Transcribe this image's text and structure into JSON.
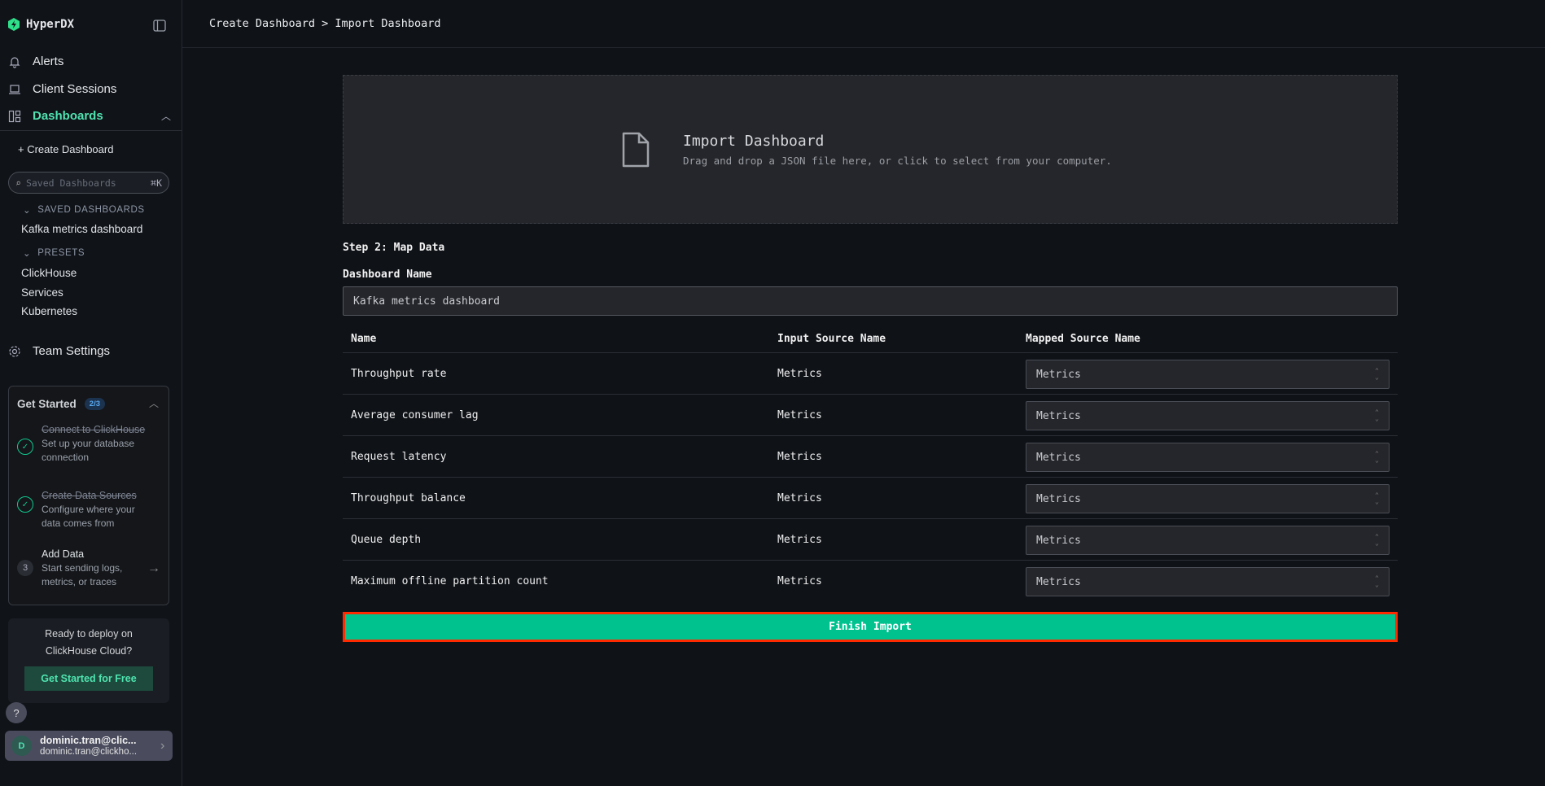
{
  "app": {
    "name": "HyperDX",
    "brand_color": "#2fe08a"
  },
  "sidebar": {
    "nav": [
      {
        "label": "Alerts",
        "icon": "bell-icon"
      },
      {
        "label": "Client Sessions",
        "icon": "laptop-icon"
      },
      {
        "label": "Dashboards",
        "icon": "dashboard-icon",
        "active": true
      }
    ],
    "create_dashboard": "Create Dashboard",
    "search": {
      "placeholder": "Saved Dashboards",
      "shortcut": "⌘K"
    },
    "saved_header": "SAVED DASHBOARDS",
    "saved": [
      "Kafka metrics dashboard"
    ],
    "presets_header": "PRESETS",
    "presets": [
      "ClickHouse",
      "Services",
      "Kubernetes"
    ],
    "team_settings": "Team Settings",
    "get_started": {
      "title": "Get Started",
      "progress": "2/3",
      "steps": [
        {
          "title": "Connect to ClickHouse",
          "desc": "Set up your database connection",
          "done": true
        },
        {
          "title": "Create Data Sources",
          "desc": "Configure where your data comes from",
          "done": true
        },
        {
          "num": "3",
          "title": "Add Data",
          "desc": "Start sending logs, metrics, or traces",
          "done": false
        }
      ]
    },
    "deploy": {
      "text": "Ready to deploy on ClickHouse Cloud?",
      "button": "Get Started for Free"
    },
    "help": "?",
    "user": {
      "initial": "D",
      "name": "dominic.tran@clic...",
      "email": "dominic.tran@clickho..."
    }
  },
  "header": {
    "breadcrumb": "Create Dashboard > Import Dashboard"
  },
  "dropzone": {
    "title": "Import Dashboard",
    "subtitle": "Drag and drop a JSON file here, or click to select from your computer."
  },
  "form": {
    "step": "Step 2: Map Data",
    "name_label": "Dashboard Name",
    "name_value": "Kafka metrics dashboard"
  },
  "table": {
    "headers": [
      "Name",
      "Input Source Name",
      "Mapped Source Name"
    ],
    "rows": [
      {
        "name": "Throughput rate",
        "input": "Metrics",
        "mapped": "Metrics"
      },
      {
        "name": "Average consumer lag",
        "input": "Metrics",
        "mapped": "Metrics"
      },
      {
        "name": "Request latency",
        "input": "Metrics",
        "mapped": "Metrics"
      },
      {
        "name": "Throughput balance",
        "input": "Metrics",
        "mapped": "Metrics"
      },
      {
        "name": "Queue depth",
        "input": "Metrics",
        "mapped": "Metrics"
      },
      {
        "name": "Maximum offline partition count",
        "input": "Metrics",
        "mapped": "Metrics"
      }
    ]
  },
  "finish_button": "Finish Import",
  "colors": {
    "accent": "#00c28f",
    "highlight": "#ff2a00",
    "active_nav": "#4fe3b0"
  }
}
